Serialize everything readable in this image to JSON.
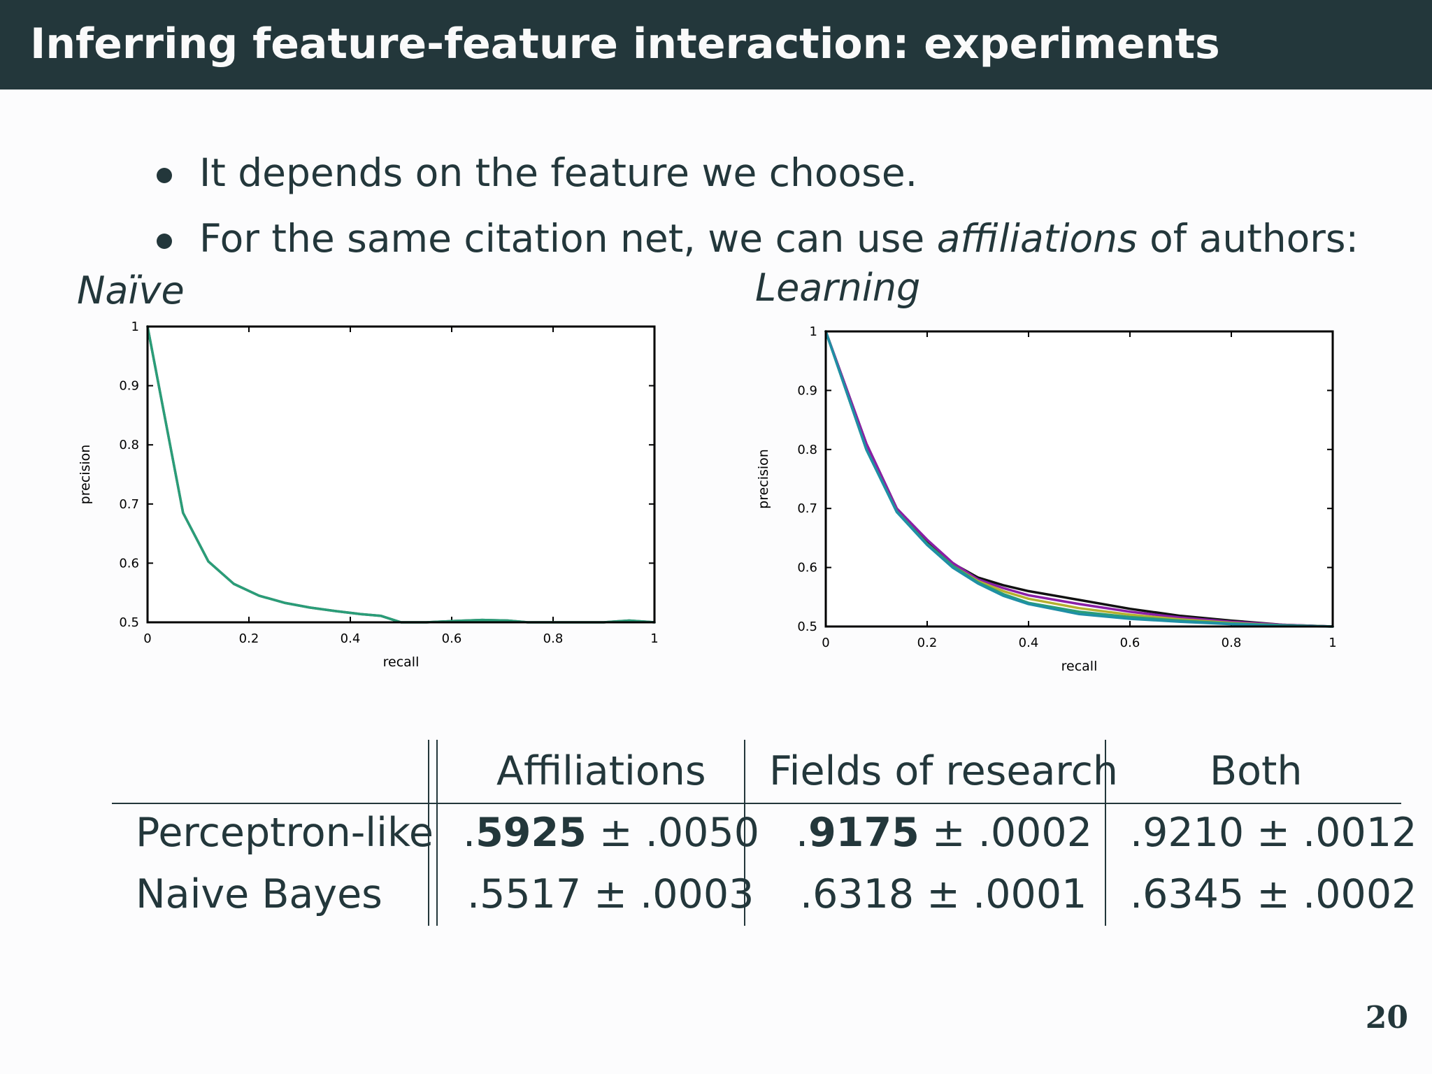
{
  "slide": {
    "title": "Inferring feature-feature interaction: experiments",
    "page_number": "20",
    "bullets": [
      {
        "text": "It depends on the feature we choose."
      },
      {
        "prefix": "For the same citation net, we can use ",
        "emph": "affiliations",
        "suffix": " of authors:"
      }
    ],
    "left_plot_label": "Naïve",
    "right_plot_label": "Learning"
  },
  "chart_data": [
    {
      "type": "line",
      "xlabel": "recall",
      "ylabel": "precision",
      "xlim": [
        0,
        1
      ],
      "ylim": [
        0.5,
        1
      ],
      "xticks": [
        "0",
        "0.2",
        "0.4",
        "0.6",
        "0.8",
        "1"
      ],
      "yticks": [
        "0.5",
        "0.6",
        "0.7",
        "0.8",
        "0.9",
        "1"
      ],
      "colors": [
        "#555555",
        "#2a9d78"
      ],
      "series": [
        {
          "x": [
            0,
            0.07,
            0.12,
            0.17,
            0.22,
            0.27,
            0.32,
            0.37,
            0.42,
            0.46,
            0.5,
            0.55,
            0.6,
            0.66,
            0.71,
            0.75,
            0.8,
            0.85,
            0.9,
            0.95,
            1.0
          ],
          "y": [
            1.0,
            0.685,
            0.603,
            0.565,
            0.545,
            0.533,
            0.525,
            0.519,
            0.514,
            0.511,
            0.5,
            0.5,
            0.502,
            0.504,
            0.503,
            0.5,
            0.5,
            0.5,
            0.5,
            0.503,
            0.5
          ]
        },
        {
          "x": [
            0,
            0.07,
            0.12,
            0.17,
            0.22,
            0.27,
            0.32,
            0.37,
            0.42,
            0.46,
            0.5,
            0.55,
            0.6,
            0.66,
            0.71,
            0.75,
            0.8,
            0.85,
            0.9,
            0.95,
            1.0
          ],
          "y": [
            1.0,
            0.685,
            0.603,
            0.565,
            0.545,
            0.533,
            0.525,
            0.519,
            0.514,
            0.511,
            0.5,
            0.5,
            0.502,
            0.504,
            0.503,
            0.5,
            0.5,
            0.5,
            0.5,
            0.503,
            0.5
          ]
        }
      ]
    },
    {
      "type": "line",
      "xlabel": "recall",
      "ylabel": "precision",
      "xlim": [
        0,
        1
      ],
      "ylim": [
        0.5,
        1
      ],
      "xticks": [
        "0",
        "0.2",
        "0.4",
        "0.6",
        "0.8",
        "1"
      ],
      "yticks": [
        "0.5",
        "0.6",
        "0.7",
        "0.8",
        "0.9",
        "1"
      ],
      "colors": [
        "#111111",
        "#8a1fa6",
        "#b5b02f",
        "#2a9d78",
        "#1f8fa6"
      ],
      "series": [
        {
          "x": [
            0,
            0.08,
            0.14,
            0.2,
            0.25,
            0.3,
            0.35,
            0.4,
            0.5,
            0.6,
            0.7,
            0.8,
            0.9,
            1.0
          ],
          "y": [
            1.0,
            0.81,
            0.7,
            0.645,
            0.607,
            0.583,
            0.57,
            0.56,
            0.545,
            0.53,
            0.518,
            0.51,
            0.503,
            0.5
          ]
        },
        {
          "x": [
            0,
            0.08,
            0.14,
            0.2,
            0.25,
            0.3,
            0.35,
            0.4,
            0.5,
            0.6,
            0.7,
            0.8,
            0.9,
            1.0
          ],
          "y": [
            1.0,
            0.81,
            0.7,
            0.647,
            0.608,
            0.58,
            0.565,
            0.553,
            0.538,
            0.525,
            0.515,
            0.508,
            0.503,
            0.5
          ]
        },
        {
          "x": [
            0,
            0.08,
            0.14,
            0.2,
            0.25,
            0.3,
            0.35,
            0.4,
            0.5,
            0.6,
            0.7,
            0.8,
            0.9,
            1.0
          ],
          "y": [
            1.0,
            0.8,
            0.695,
            0.64,
            0.603,
            0.577,
            0.56,
            0.547,
            0.531,
            0.52,
            0.512,
            0.506,
            0.502,
            0.5
          ]
        },
        {
          "x": [
            0,
            0.08,
            0.14,
            0.2,
            0.25,
            0.3,
            0.35,
            0.4,
            0.5,
            0.6,
            0.7,
            0.8,
            0.9,
            1.0
          ],
          "y": [
            1.0,
            0.8,
            0.695,
            0.64,
            0.603,
            0.575,
            0.555,
            0.54,
            0.525,
            0.516,
            0.51,
            0.505,
            0.502,
            0.5
          ]
        },
        {
          "x": [
            0,
            0.08,
            0.14,
            0.2,
            0.25,
            0.3,
            0.35,
            0.4,
            0.5,
            0.6,
            0.7,
            0.8,
            0.9,
            1.0
          ],
          "y": [
            1.0,
            0.8,
            0.694,
            0.638,
            0.6,
            0.573,
            0.552,
            0.538,
            0.521,
            0.513,
            0.508,
            0.504,
            0.501,
            0.5
          ]
        }
      ]
    }
  ],
  "results_table": {
    "columns": [
      "Affiliations",
      "Fields of research",
      "Both"
    ],
    "rows": [
      {
        "label": "Perceptron-like",
        "cells": [
          {
            "dot": ".",
            "bold": "5925",
            "rest": " ± .0050"
          },
          {
            "dot": ".",
            "bold": "9175",
            "rest": " ± .0002"
          },
          {
            "dot": "",
            "bold": "",
            "rest": ".9210 ± .0012"
          }
        ]
      },
      {
        "label": "Naive Bayes",
        "cells": [
          {
            "dot": "",
            "bold": "",
            "rest": ".5517 ± .0003"
          },
          {
            "dot": "",
            "bold": "",
            "rest": ".6318 ± .0001"
          },
          {
            "dot": "",
            "bold": "",
            "rest": ".6345 ± .0002"
          }
        ]
      }
    ]
  }
}
